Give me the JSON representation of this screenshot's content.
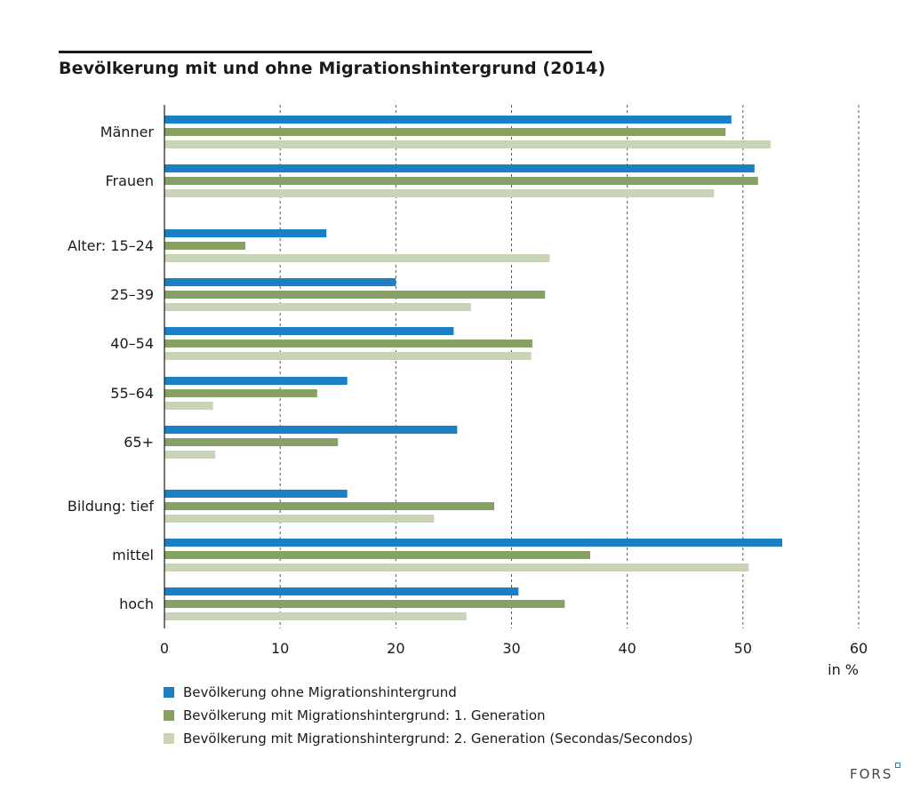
{
  "title": "Bevölkerung mit und ohne Migrationshintergrund (2014)",
  "logo_text": "FORS",
  "chart_data": {
    "type": "bar",
    "orientation": "horizontal",
    "title": "Bevölkerung mit und ohne Migrationshintergrund (2014)",
    "xlabel": "in %",
    "xlim": [
      0,
      60
    ],
    "xticks": [
      0,
      10,
      20,
      30,
      40,
      50,
      60
    ],
    "grid": "vertical dashed",
    "categories": [
      "Männer",
      "Frauen",
      "Alter: 15–24",
      "25–39",
      "40–54",
      "55–64",
      "65+",
      "Bildung: tief",
      "mittel",
      "hoch"
    ],
    "series": [
      {
        "name": "Bevölkerung ohne Migrationshintergrund",
        "color": "#1a7fc4",
        "values": [
          49,
          51,
          14,
          20,
          25,
          15.8,
          25.3,
          15.8,
          53.4,
          30.6
        ]
      },
      {
        "name": "Bevölkerung mit Migrationshintergrund: 1. Generation",
        "color": "#86a163",
        "values": [
          48.5,
          51.3,
          7,
          32.9,
          31.8,
          13.2,
          15,
          28.5,
          36.8,
          34.6
        ]
      },
      {
        "name": "Bevölkerung mit Migrationshintergrund: 2. Generation (Secondas/Secondos)",
        "color": "#c9d3b6",
        "values": [
          52.4,
          47.5,
          33.3,
          26.5,
          31.7,
          4.2,
          4.4,
          23.3,
          50.5,
          26.1
        ]
      }
    ]
  }
}
